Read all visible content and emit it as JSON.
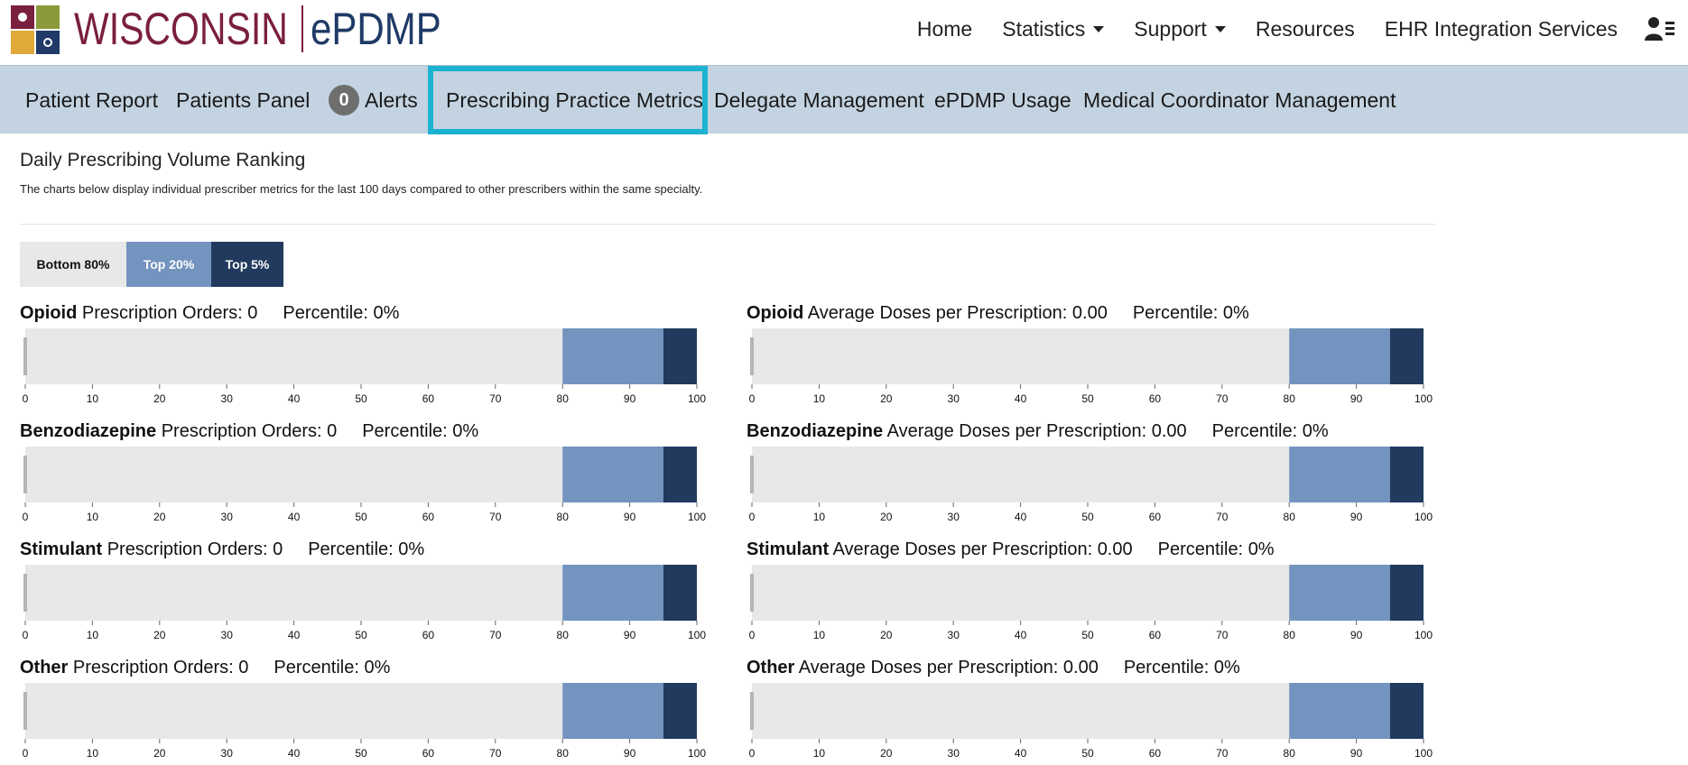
{
  "header": {
    "logo_text_left": "WISCONSIN",
    "logo_text_right": "ePDMP",
    "nav": [
      {
        "label": "Home",
        "dropdown": false
      },
      {
        "label": "Statistics",
        "dropdown": true
      },
      {
        "label": "Support",
        "dropdown": true
      },
      {
        "label": "Resources",
        "dropdown": false
      },
      {
        "label": "EHR Integration Services",
        "dropdown": false
      }
    ],
    "user_icon": "user-menu-icon"
  },
  "subnav": {
    "tabs": [
      {
        "label": "Patient Report"
      },
      {
        "label": "Patients Panel"
      },
      {
        "label": "Alerts",
        "badge": "0"
      },
      {
        "label": "Prescribing Practice Metrics",
        "active": true
      },
      {
        "label": "Delegate Management"
      },
      {
        "label": "ePDMP Usage"
      },
      {
        "label": "Medical Coordinator Management"
      }
    ],
    "active_color": "#1cb2d1"
  },
  "page": {
    "title": "Daily Prescribing Volume Ranking",
    "description": "The charts below display individual prescriber metrics for the last 100 days compared to other prescribers within the same specialty."
  },
  "legend": {
    "bottom80": "Bottom 80%",
    "top20": "Top 20%",
    "top5": "Top 5%"
  },
  "colors": {
    "bottom80": "#e8e8e8",
    "top20": "#7394bf",
    "top5": "#213a5e",
    "marker": "#b5b5b5"
  },
  "chart_data": {
    "type": "bar",
    "bands": [
      {
        "name": "Bottom 80%",
        "from": 0,
        "to": 80
      },
      {
        "name": "Top 20%",
        "from": 80,
        "to": 95
      },
      {
        "name": "Top 5%",
        "from": 95,
        "to": 100
      }
    ],
    "ticks": [
      "0",
      "10",
      "20",
      "30",
      "40",
      "50",
      "60",
      "70",
      "80",
      "90",
      "100"
    ],
    "xlim": [
      0,
      100
    ],
    "metrics": [
      {
        "drug": "Opioid",
        "label": "Prescription Orders:",
        "value": "0",
        "percentile_label": "Percentile:",
        "percentile_text": "0%",
        "percentile": 0
      },
      {
        "drug": "Opioid",
        "label": "Average Doses per Prescription:",
        "value": "0.00",
        "percentile_label": "Percentile:",
        "percentile_text": "0%",
        "percentile": 0
      },
      {
        "drug": "Benzodiazepine",
        "label": "Prescription Orders:",
        "value": "0",
        "percentile_label": "Percentile:",
        "percentile_text": "0%",
        "percentile": 0
      },
      {
        "drug": "Benzodiazepine",
        "label": "Average Doses per Prescription:",
        "value": "0.00",
        "percentile_label": "Percentile:",
        "percentile_text": "0%",
        "percentile": 0
      },
      {
        "drug": "Stimulant",
        "label": "Prescription Orders:",
        "value": "0",
        "percentile_label": "Percentile:",
        "percentile_text": "0%",
        "percentile": 0
      },
      {
        "drug": "Stimulant",
        "label": "Average Doses per Prescription:",
        "value": "0.00",
        "percentile_label": "Percentile:",
        "percentile_text": "0%",
        "percentile": 0
      },
      {
        "drug": "Other",
        "label": "Prescription Orders:",
        "value": "0",
        "percentile_label": "Percentile:",
        "percentile_text": "0%",
        "percentile": 0
      },
      {
        "drug": "Other",
        "label": "Average Doses per Prescription:",
        "value": "0.00",
        "percentile_label": "Percentile:",
        "percentile_text": "0%",
        "percentile": 0
      }
    ]
  }
}
